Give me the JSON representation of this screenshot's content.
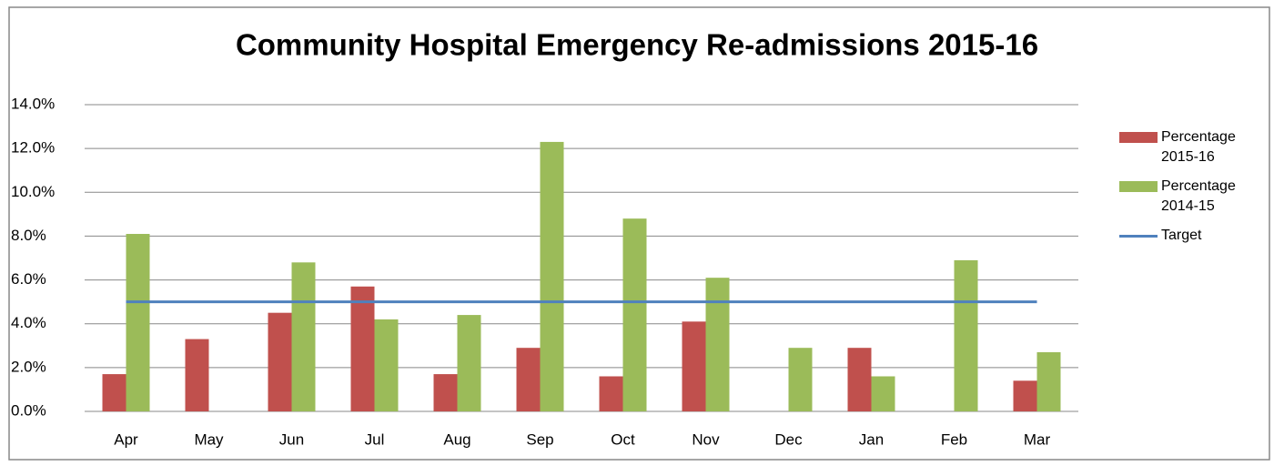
{
  "chart_data": {
    "type": "bar",
    "title": "Community Hospital Emergency Re-admissions 2015-16",
    "categories": [
      "Apr",
      "May",
      "Jun",
      "Jul",
      "Aug",
      "Sep",
      "Oct",
      "Nov",
      "Dec",
      "Jan",
      "Feb",
      "Mar"
    ],
    "series": [
      {
        "name": "Percentage 2015-16",
        "color": "#c0504d",
        "type": "bar",
        "values": [
          1.7,
          3.3,
          4.5,
          5.7,
          1.7,
          2.9,
          1.6,
          4.1,
          null,
          2.9,
          null,
          1.4
        ]
      },
      {
        "name": "Percentage 2014-15",
        "color": "#9bbb59",
        "type": "bar",
        "values": [
          8.1,
          null,
          6.8,
          4.2,
          4.4,
          12.3,
          8.8,
          6.1,
          2.9,
          1.6,
          6.9,
          2.7
        ]
      },
      {
        "name": "Target",
        "color": "#4f81bd",
        "type": "line",
        "values": [
          5,
          5,
          5,
          5,
          5,
          5,
          5,
          5,
          5,
          5,
          5,
          5
        ]
      }
    ],
    "ylim": [
      0,
      14
    ],
    "yticks": [
      {
        "value": 0,
        "label": "0.0%"
      },
      {
        "value": 2,
        "label": "2.0%"
      },
      {
        "value": 4,
        "label": "4.0%"
      },
      {
        "value": 6,
        "label": "6.0%"
      },
      {
        "value": 8,
        "label": "8.0%"
      },
      {
        "value": 10,
        "label": "10.0%"
      },
      {
        "value": 12,
        "label": "12.0%"
      },
      {
        "value": 14,
        "label": "14.0%"
      }
    ],
    "grid": true,
    "legend": "right"
  }
}
